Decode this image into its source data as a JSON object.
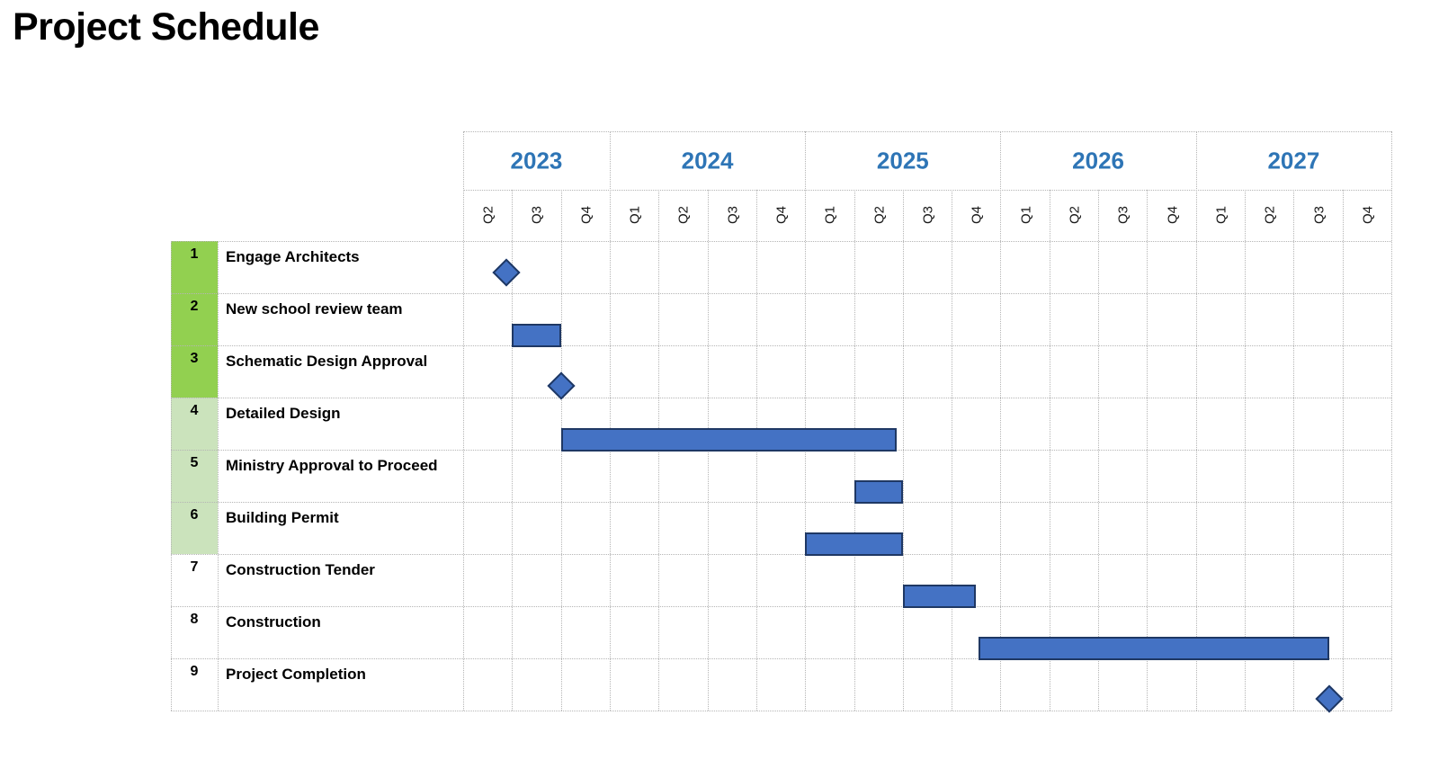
{
  "title": "Project Schedule",
  "colors": {
    "year_label": "#2E75B6",
    "bar_fill": "#4472C4",
    "bar_border": "#1F3864",
    "row_number_green": "#92D050",
    "row_number_light_green": "#CBE3BC",
    "grid_line": "#B5B5B5",
    "text": "#000000"
  },
  "chart_data": {
    "type": "gantt",
    "time_axis": {
      "unit": "quarter",
      "start": "Q2 2023",
      "end": "Q4 2027",
      "note": "numeric task positions are in quarters elapsed since the start of Q2 2023",
      "years": [
        {
          "label": "2023",
          "quarters": [
            "Q2",
            "Q3",
            "Q4"
          ]
        },
        {
          "label": "2024",
          "quarters": [
            "Q1",
            "Q2",
            "Q3",
            "Q4"
          ]
        },
        {
          "label": "2025",
          "quarters": [
            "Q1",
            "Q2",
            "Q3",
            "Q4"
          ]
        },
        {
          "label": "2026",
          "quarters": [
            "Q1",
            "Q2",
            "Q3",
            "Q4"
          ]
        },
        {
          "label": "2027",
          "quarters": [
            "Q1",
            "Q2",
            "Q3",
            "Q4"
          ]
        }
      ]
    },
    "tasks": [
      {
        "num": "1",
        "name": "Engage Architects",
        "shape": "milestone",
        "at": 0.88,
        "when": "end of Q2 2023",
        "row_color": "green"
      },
      {
        "num": "2",
        "name": "New school review team",
        "shape": "bar",
        "start": 1.0,
        "end": 2.0,
        "when": "Q3 2023",
        "row_color": "green"
      },
      {
        "num": "3",
        "name": "Schematic Design Approval",
        "shape": "milestone",
        "at": 2.0,
        "when": "end of Q3 2023",
        "row_color": "green"
      },
      {
        "num": "4",
        "name": "Detailed Design",
        "shape": "bar",
        "start": 2.0,
        "end": 8.87,
        "when": "Q4 2023 - Q2 2025",
        "row_color": "light-green"
      },
      {
        "num": "5",
        "name": "Ministry Approval to Proceed",
        "shape": "bar",
        "start": 8.0,
        "end": 9.0,
        "when": "Q2 2025",
        "row_color": "light-green"
      },
      {
        "num": "6",
        "name": "Building Permit",
        "shape": "bar",
        "start": 7.0,
        "end": 9.0,
        "when": "Q1 2025 - Q2 2025",
        "row_color": "light-green"
      },
      {
        "num": "7",
        "name": "Construction Tender",
        "shape": "bar",
        "start": 9.0,
        "end": 10.5,
        "when": "Q3 2025 - mid Q4 2025",
        "row_color": "none"
      },
      {
        "num": "8",
        "name": "Construction",
        "shape": "bar",
        "start": 10.55,
        "end": 17.73,
        "when": "mid Q4 2025 - Q3 2027",
        "row_color": "none"
      },
      {
        "num": "9",
        "name": "Project Completion",
        "shape": "milestone",
        "at": 17.73,
        "when": "Q3 2027",
        "row_color": "none"
      }
    ]
  }
}
